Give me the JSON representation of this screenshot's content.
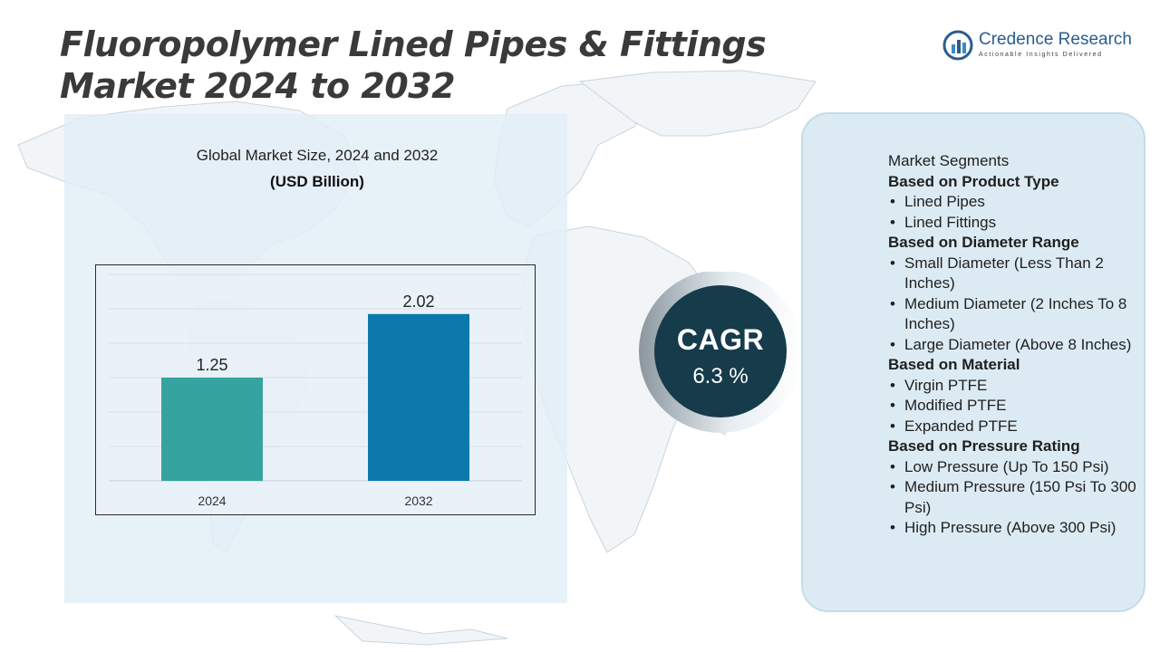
{
  "header": {
    "title": "Fluoropolymer Lined Pipes & Fittings Market 2024 to 2032"
  },
  "logo": {
    "name": "Credence Research",
    "tagline": "Actionable Insights Delivered",
    "icon": "credence-logo-icon"
  },
  "colors": {
    "title": "#3a3a3a",
    "bar_2024": "#35a3a0",
    "bar_2032": "#0b79ab",
    "cagr_circle": "#163b4a",
    "panel_bg": "#e2eef7",
    "segment_box": "#daeaf2"
  },
  "chart_data": {
    "type": "bar",
    "title": "Global Market Size, 2024 and 2032",
    "unit": "(USD Billion)",
    "categories": [
      "2024",
      "2032"
    ],
    "values": [
      1.25,
      2.02
    ],
    "data_labels": [
      "1.25",
      "2.02"
    ],
    "ylim": [
      0,
      2.5
    ],
    "grid": true,
    "legend": "none"
  },
  "cagr": {
    "label": "CAGR",
    "value": "6.3 %"
  },
  "segments": {
    "heading": "Market Segments",
    "groups": [
      {
        "title": "Based on Product Type",
        "items": [
          "Lined Pipes",
          "Lined Fittings"
        ]
      },
      {
        "title": "Based on Diameter Range",
        "items": [
          "Small Diameter (Less Than 2 Inches)",
          "Medium Diameter (2 Inches To 8 Inches)",
          "Large Diameter (Above 8 Inches)"
        ]
      },
      {
        "title": "Based on Material",
        "items": [
          "Virgin PTFE",
          "Modified PTFE",
          "Expanded PTFE"
        ]
      },
      {
        "title": "Based on Pressure Rating",
        "items": [
          "Low Pressure (Up To 150 Psi)",
          "Medium Pressure (150 Psi To 300 Psi)",
          "High Pressure (Above 300 Psi)"
        ]
      }
    ]
  }
}
